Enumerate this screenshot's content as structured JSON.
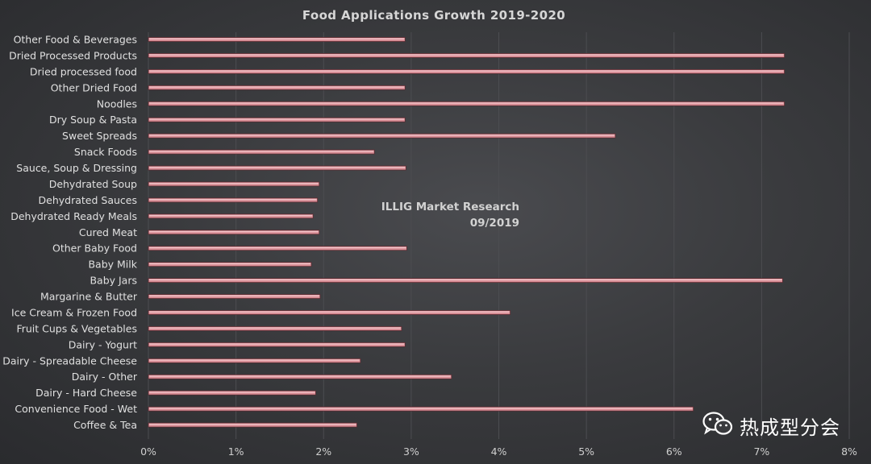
{
  "chart_data": {
    "type": "bar",
    "orientation": "horizontal",
    "title": "Food Applications Growth 2019-2020",
    "annotation": [
      "ILLIG Market Research",
      "09/2019"
    ],
    "categories": [
      "Other Food & Beverages",
      "Dried Processed Products",
      "Dried processed food",
      "Other Dried Food",
      "Noodles",
      "Dry Soup & Pasta",
      "Sweet Spreads",
      "Snack Foods",
      "Sauce, Soup & Dressing",
      "Dehydrated Soup",
      "Dehydrated Sauces",
      "Dehydrated Ready Meals",
      "Cured Meat",
      "Other Baby Food",
      "Baby Milk",
      "Baby Jars",
      "Margarine & Butter",
      "Ice Cream & Frozen Food",
      "Fruit Cups & Vegetables",
      "Dairy - Yogurt",
      "Dairy - Spreadable Cheese",
      "Dairy - Other",
      "Dairy - Hard Cheese",
      "Convenience Food - Wet",
      "Coffee & Tea"
    ],
    "values": [
      2.93,
      7.26,
      7.26,
      2.93,
      7.26,
      2.93,
      5.33,
      2.58,
      2.94,
      1.95,
      1.93,
      1.88,
      1.95,
      2.95,
      1.86,
      7.24,
      1.96,
      4.13,
      2.89,
      2.93,
      2.42,
      3.46,
      1.91,
      6.22,
      2.38
    ],
    "xlim": [
      0,
      8
    ],
    "xticks": [
      "0%",
      "1%",
      "2%",
      "3%",
      "4%",
      "5%",
      "6%",
      "7%",
      "8%"
    ],
    "unit": "%",
    "grid": true,
    "bar_color": "#d98f97"
  },
  "watermark": {
    "text": "热成型分会",
    "icon": "wechat-icon"
  }
}
